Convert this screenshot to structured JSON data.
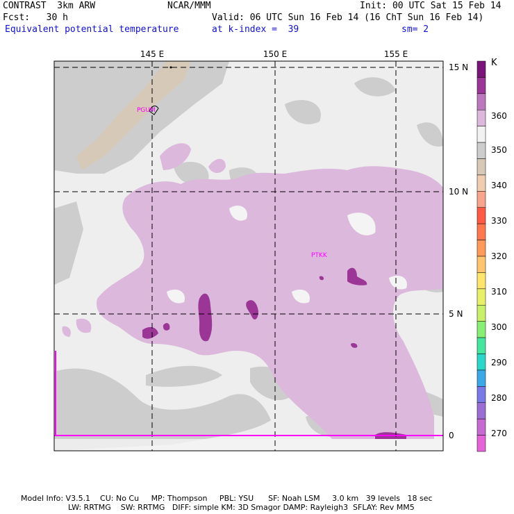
{
  "header": {
    "line1_left": "CONTRAST  3km ARW",
    "line1_center": "NCAR/MMM",
    "line1_right": "Init: 00 UTC Sat 15 Feb 14",
    "line2_left": "Fcst:   30 h",
    "line2_right": "Valid: 06 UTC Sun 16 Feb 14 (16 ChT Sun 16 Feb 14)",
    "line3_left": "Equivalent potential temperature",
    "line3_center": "at k-index =  39",
    "line3_right": "sm= 2"
  },
  "map": {
    "lon_labels": [
      "145 E",
      "150 E",
      "155 E"
    ],
    "lat_labels": [
      "15 N",
      "10 N",
      "5 N",
      "0"
    ],
    "stations": [
      {
        "id": "PGUM"
      },
      {
        "id": "PTKK"
      }
    ],
    "colors": {
      "land": "#ffffff",
      "bg": "#eeeeee",
      "gray": "#cdcdcd",
      "tan": "#d6c9b7",
      "light_purple": "#dcb8dc",
      "dark_purple": "#9b3596",
      "station": "#ff00ff"
    }
  },
  "colorbar": {
    "unit": "K",
    "tick_labels": [
      "360",
      "350",
      "340",
      "330",
      "320",
      "310",
      "300",
      "290",
      "280",
      "270"
    ],
    "colors": [
      "#7a1478",
      "#9b3596",
      "#bc78bc",
      "#dcb8dc",
      "#f2f2f2",
      "#cdcdcd",
      "#d6c9b7",
      "#f0cdb0",
      "#f7a58c",
      "#ff5a46",
      "#ff7850",
      "#ff9a5a",
      "#ffc470",
      "#ffe46e",
      "#e8f06a",
      "#c8f06a",
      "#88ee74",
      "#46e6a0",
      "#2cd6c8",
      "#3ca8e6",
      "#7a7ae6",
      "#9a6ed2",
      "#c66ad2",
      "#e464d8"
    ]
  },
  "footer": {
    "line1": "Model Info: V3.5.1    CU: No Cu     MP: Thompson     PBL: YSU      SF: Noah LSM     3.0 km   39 levels   18 sec",
    "line2": "LW: RRTMG    SW: RRTMG   DIFF: simple KM: 3D Smagor DAMP: Rayleigh3  SFLAY: Rev MM5"
  }
}
